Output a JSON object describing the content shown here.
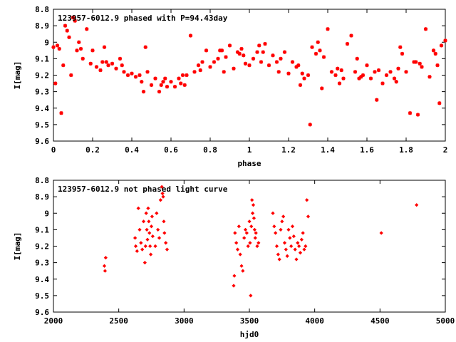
{
  "chart_data": [
    {
      "type": "scatter",
      "title": "123957-6012.9 phased with P=94.43day",
      "xlabel": "phase",
      "ylabel": "I[mag]",
      "xlim": [
        0,
        2
      ],
      "ylim": [
        8.8,
        9.6
      ],
      "y_inverted": true,
      "x_ticks": [
        "0",
        "0.2",
        "0.4",
        "0.6",
        "0.8",
        "1",
        "1.2",
        "1.4",
        "1.6",
        "1.8",
        "2"
      ],
      "y_ticks": [
        "8.8",
        "8.9",
        "9",
        "9.1",
        "9.2",
        "9.3",
        "9.4",
        "9.5",
        "9.6"
      ],
      "marker": "plus-cross",
      "color": "#ff0000",
      "series": [
        {
          "x": [
            0.0,
            0.01,
            0.02,
            0.03,
            0.05,
            0.06,
            0.07,
            0.09,
            0.1,
            0.11,
            0.13,
            0.15,
            0.17,
            0.19,
            0.2,
            0.22,
            0.24,
            0.26,
            0.28,
            0.3,
            0.32,
            0.34,
            0.36,
            0.38,
            0.4,
            0.42,
            0.44,
            0.46,
            0.48,
            0.5,
            0.52,
            0.54,
            0.56,
            0.58,
            0.6,
            0.62,
            0.64,
            0.66,
            0.68,
            0.7,
            0.72,
            0.74,
            0.76,
            0.78,
            0.8,
            0.82,
            0.84,
            0.86,
            0.88,
            0.9,
            0.92,
            0.94,
            0.96,
            0.98,
            1.0,
            1.02,
            1.04,
            1.06,
            1.08,
            1.1,
            1.12,
            1.14,
            1.16,
            1.18,
            1.2,
            1.22,
            1.24,
            1.26,
            1.28,
            1.3,
            1.31,
            1.32,
            1.34,
            1.36,
            1.38,
            1.4,
            1.42,
            1.44,
            1.46,
            1.48,
            1.5,
            1.52,
            1.54,
            1.56,
            1.58,
            1.6,
            1.62,
            1.64,
            1.66,
            1.68,
            1.7,
            1.72,
            1.74,
            1.76,
            1.78,
            1.8,
            1.82,
            1.84,
            1.86,
            1.88,
            1.9,
            1.92,
            1.94,
            1.96,
            1.98,
            2.0,
            0.08,
            0.12,
            0.25,
            0.35,
            0.45,
            0.55,
            0.65,
            0.75,
            0.85,
            0.95,
            1.05,
            1.15,
            1.25,
            1.35,
            1.45,
            1.55,
            1.65,
            1.75,
            1.85,
            1.95,
            0.04,
            0.14,
            0.27,
            0.47,
            0.57,
            0.67,
            0.87,
            0.97,
            1.07,
            1.27,
            1.37,
            1.47,
            1.57,
            1.77,
            1.87,
            1.97
          ],
          "y": [
            9.03,
            9.25,
            9.02,
            9.04,
            9.14,
            8.9,
            8.93,
            9.2,
            8.85,
            8.87,
            9.0,
            9.1,
            8.92,
            9.13,
            9.05,
            9.15,
            9.17,
            9.03,
            9.14,
            9.13,
            9.16,
            9.1,
            9.18,
            9.2,
            9.19,
            9.21,
            9.2,
            9.3,
            9.18,
            9.26,
            9.22,
            9.3,
            9.24,
            9.27,
            9.24,
            9.27,
            9.22,
            9.2,
            9.2,
            8.96,
            9.18,
            9.14,
            9.12,
            9.05,
            9.15,
            9.12,
            9.1,
            9.05,
            9.09,
            9.02,
            9.16,
            9.06,
            9.04,
            9.13,
            9.14,
            9.1,
            9.06,
            9.12,
            9.01,
            9.14,
            9.08,
            9.12,
            9.1,
            9.06,
            9.19,
            9.12,
            9.15,
            9.26,
            9.22,
            9.2,
            9.5,
            9.03,
            9.07,
            9.05,
            9.09,
            8.92,
            9.18,
            9.2,
            9.25,
            9.22,
            9.01,
            8.96,
            9.18,
            9.22,
            9.2,
            9.14,
            9.22,
            9.18,
            9.17,
            9.25,
            9.2,
            9.18,
            9.22,
            9.16,
            9.07,
            9.18,
            9.43,
            9.12,
            9.44,
            9.15,
            8.92,
            9.21,
            9.05,
            9.14,
            9.02,
            8.99,
            8.97,
            9.05,
            9.12,
            9.14,
            9.24,
            9.26,
            9.25,
            9.17,
            9.05,
            9.07,
            9.02,
            9.18,
            9.14,
            9.0,
            9.16,
            9.1,
            9.35,
            9.24,
            9.12,
            9.07,
            9.43,
            9.04,
            9.12,
            9.03,
            9.22,
            9.26,
            9.18,
            9.08,
            9.06,
            9.19,
            9.28,
            9.17,
            9.21,
            9.03,
            9.13,
            9.37
          ]
        }
      ]
    },
    {
      "type": "scatter",
      "title": "123957-6012.9 not phased light curve",
      "xlabel": "hjd0",
      "ylabel": "I[mag]",
      "xlim": [
        2000,
        5000
      ],
      "ylim": [
        8.8,
        9.6
      ],
      "y_inverted": true,
      "x_ticks": [
        "2000",
        "2500",
        "3000",
        "3500",
        "4000",
        "4500",
        "5000"
      ],
      "y_ticks": [
        "8.8",
        "8.9",
        "9",
        "9.1",
        "9.2",
        "9.3",
        "9.4",
        "9.5",
        "9.6"
      ],
      "marker": "diamond",
      "color": "#ff0000",
      "series": [
        {
          "x": [
            2390,
            2395,
            2400,
            2625,
            2630,
            2640,
            2650,
            2660,
            2670,
            2680,
            2690,
            2700,
            2705,
            2710,
            2715,
            2720,
            2725,
            2730,
            2735,
            2740,
            2745,
            2750,
            2755,
            2760,
            2780,
            2790,
            2800,
            2810,
            2820,
            2830,
            2835,
            2840,
            2845,
            2850,
            2860,
            2870,
            3380,
            3385,
            3390,
            3400,
            3410,
            3420,
            3430,
            3440,
            3450,
            3460,
            3470,
            3480,
            3490,
            3500,
            3505,
            3510,
            3515,
            3520,
            3525,
            3530,
            3535,
            3540,
            3545,
            3550,
            3560,
            3570,
            3680,
            3690,
            3700,
            3710,
            3720,
            3730,
            3740,
            3750,
            3760,
            3770,
            3780,
            3790,
            3800,
            3810,
            3820,
            3830,
            3840,
            3850,
            3860,
            3870,
            3880,
            3890,
            3900,
            3910,
            3920,
            3930,
            3940,
            3950,
            4510,
            4780
          ],
          "y": [
            9.32,
            9.35,
            9.27,
            9.15,
            9.2,
            9.23,
            8.97,
            9.1,
            9.18,
            9.22,
            9.05,
            9.3,
            9.2,
            9.0,
            9.1,
            9.16,
            8.97,
            9.05,
            9.12,
            9.2,
            9.25,
            9.08,
            9.02,
            9.14,
            9.2,
            9.0,
            9.1,
            9.15,
            8.92,
            8.84,
            8.88,
            8.9,
            9.05,
            9.12,
            9.18,
            9.22,
            9.44,
            9.38,
            9.12,
            9.18,
            9.22,
            9.08,
            9.25,
            9.32,
            9.35,
            9.15,
            9.1,
            9.12,
            9.2,
            9.05,
            9.18,
            9.5,
            9.08,
            8.92,
            9.0,
            8.95,
            9.03,
            9.1,
            9.15,
            9.12,
            9.2,
            9.18,
            9.0,
            9.08,
            9.12,
            9.2,
            9.25,
            9.28,
            9.1,
            9.05,
            9.02,
            9.18,
            9.22,
            9.26,
            9.1,
            9.15,
            9.2,
            9.08,
            9.14,
            9.22,
            9.28,
            9.18,
            9.2,
            9.24,
            9.16,
            9.12,
            9.22,
            9.2,
            8.92,
            9.02,
            9.12,
            8.95
          ]
        }
      ]
    }
  ]
}
